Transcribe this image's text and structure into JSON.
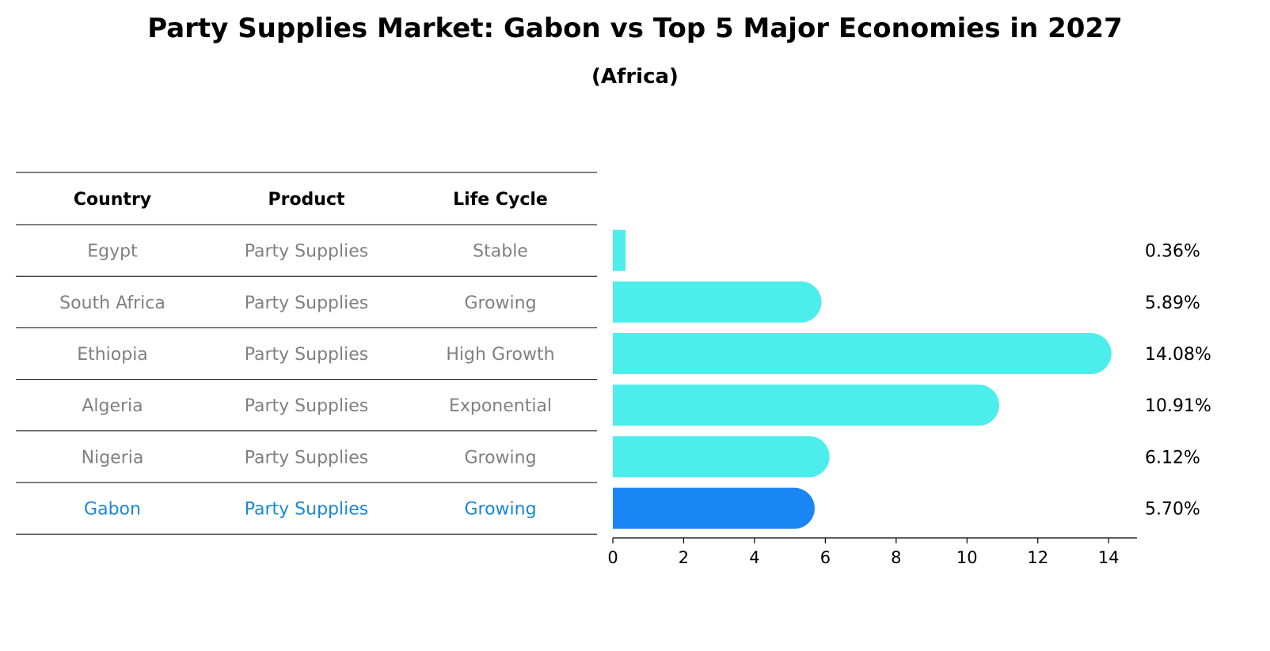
{
  "title": "Party Supplies Market: Gabon vs Top 5 Major Economies in 2027",
  "subtitle": "(Africa)",
  "table": {
    "headers": [
      "Country",
      "Product",
      "Life Cycle"
    ],
    "rows": [
      {
        "country": "Egypt",
        "product": "Party Supplies",
        "life_cycle": "Stable",
        "highlight": false
      },
      {
        "country": "South Africa",
        "product": "Party Supplies",
        "life_cycle": "Growing",
        "highlight": false
      },
      {
        "country": "Ethiopia",
        "product": "Party Supplies",
        "life_cycle": "High Growth",
        "highlight": false
      },
      {
        "country": "Algeria",
        "product": "Party Supplies",
        "life_cycle": "Exponential",
        "highlight": false
      },
      {
        "country": "Nigeria",
        "product": "Party Supplies",
        "life_cycle": "Growing",
        "highlight": false
      },
      {
        "country": "Gabon",
        "product": "Party Supplies",
        "life_cycle": "Growing",
        "highlight": true
      }
    ]
  },
  "colors": {
    "bar": "#4dedeb",
    "highlight_bar": "#1a86f5",
    "highlight_text": "#1a86d6",
    "muted_text": "#808080"
  },
  "chart_data": {
    "type": "bar",
    "orientation": "horizontal",
    "categories": [
      "Egypt",
      "South Africa",
      "Ethiopia",
      "Algeria",
      "Nigeria",
      "Gabon"
    ],
    "values": [
      0.36,
      5.89,
      14.08,
      10.91,
      6.12,
      5.7
    ],
    "value_labels": [
      "0.36%",
      "5.89%",
      "14.08%",
      "10.91%",
      "6.12%",
      "5.70%"
    ],
    "highlight": "Gabon",
    "xlim": [
      0,
      14.8
    ],
    "xticks": [
      0,
      2,
      4,
      6,
      8,
      10,
      12,
      14
    ],
    "xlabel": "",
    "ylabel": ""
  }
}
